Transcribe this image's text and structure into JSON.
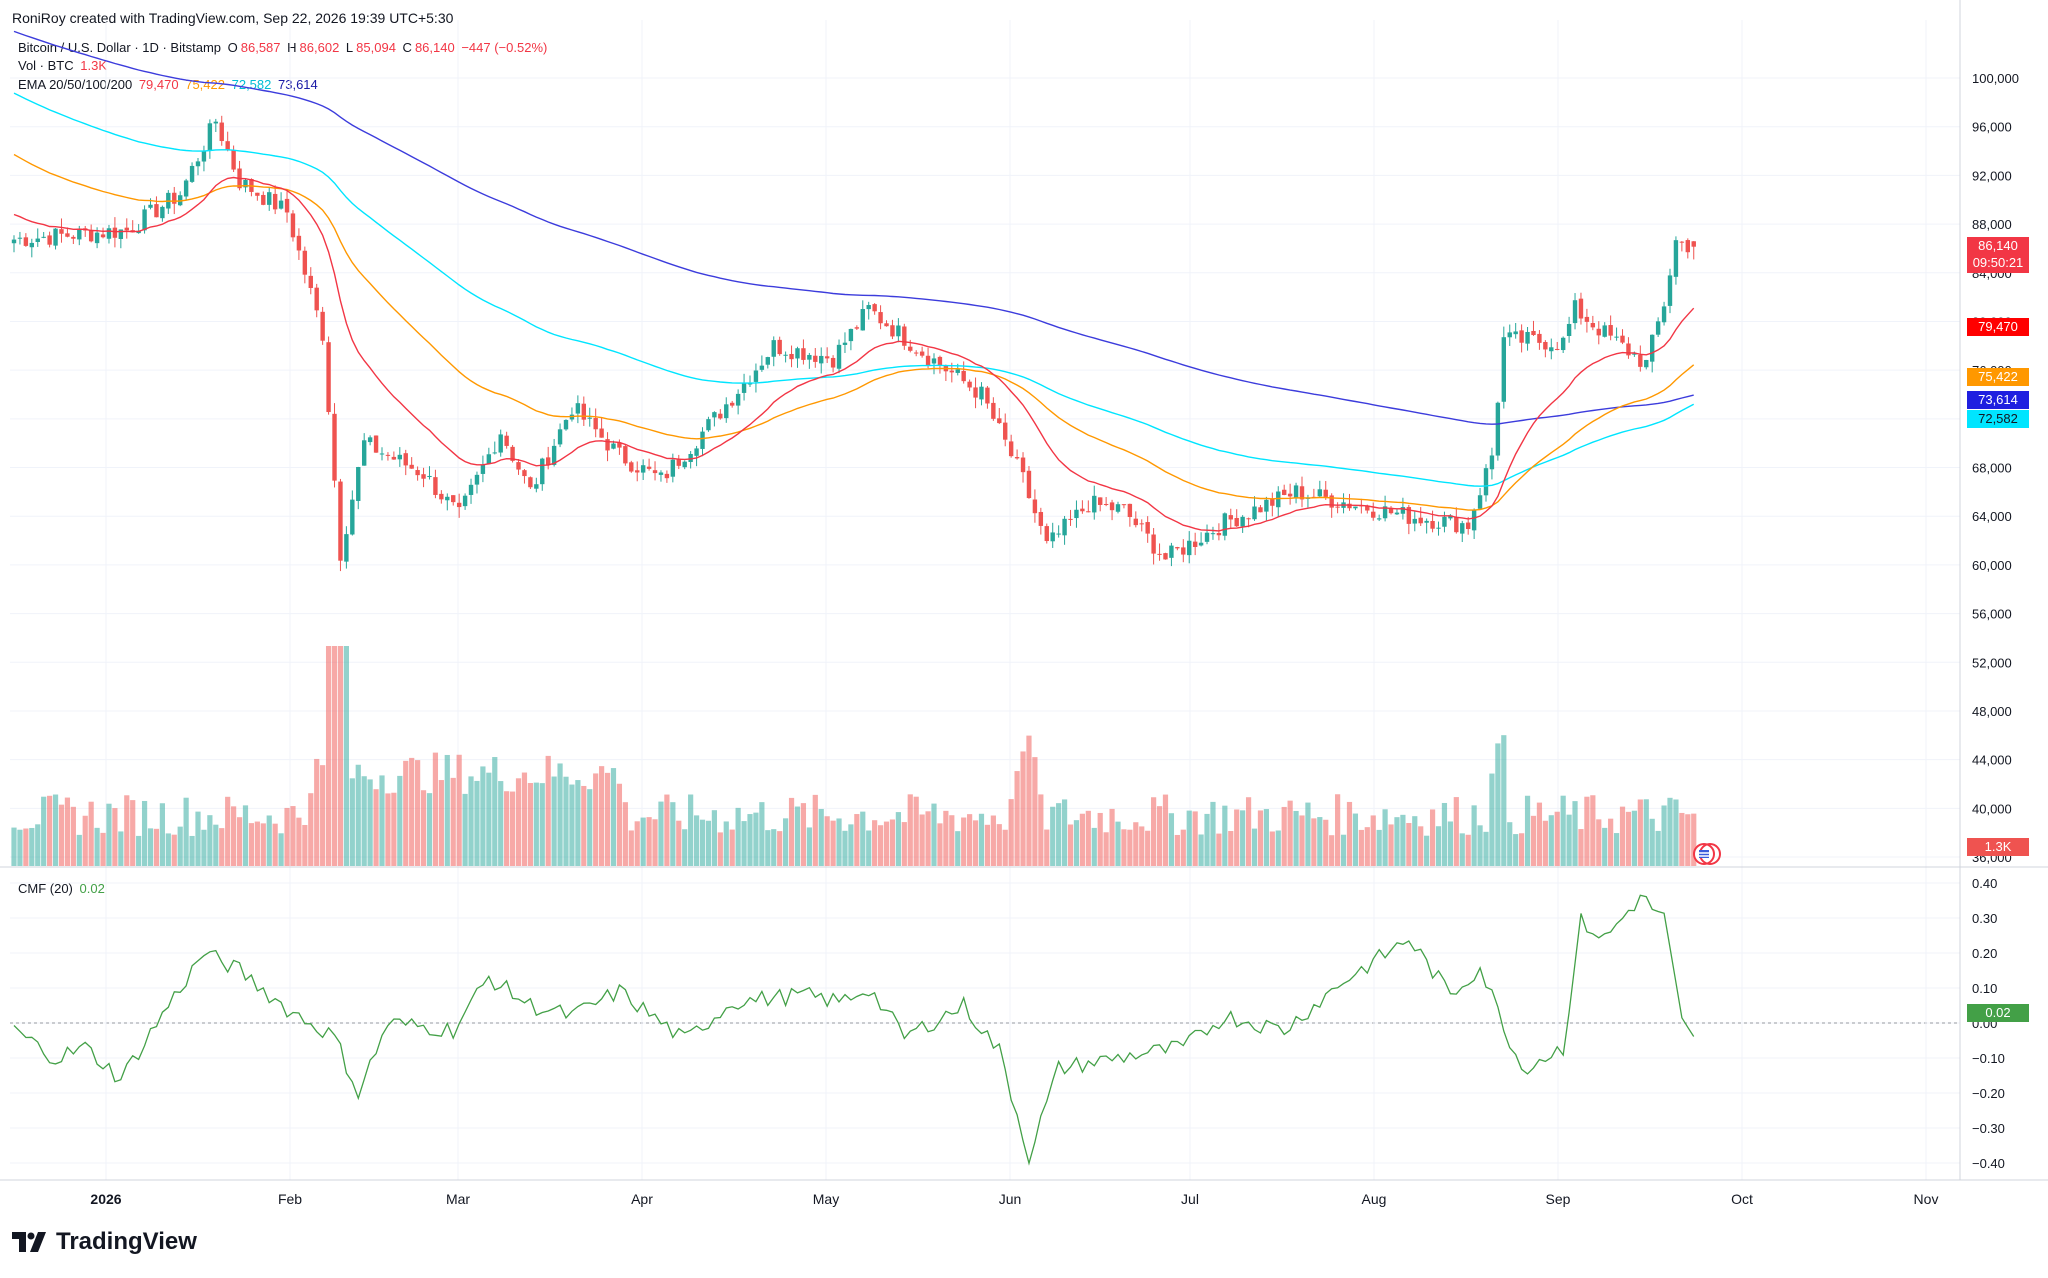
{
  "header": {
    "text": "RoniRoy created with TradingView.com, Sep 22, 2026 19:39 UTC+5:30"
  },
  "brand": {
    "name": "TradingView"
  },
  "legend": {
    "symbol": "Bitcoin / U.S. Dollar · 1D · Bitstamp",
    "o_label": "O",
    "o": "86,587",
    "h_label": "H",
    "h": "86,602",
    "l_label": "L",
    "l": "85,094",
    "c_label": "C",
    "c": "86,140",
    "change": "−447 (−0.52%)",
    "vol_label": "Vol · BTC",
    "vol": "1.3K",
    "ema_label": "EMA 20/50/100/200",
    "ema20": "79,470",
    "ema50": "75,422",
    "ema100": "72,582",
    "ema200": "73,614",
    "cmf_label": "CMF (20)",
    "cmf": "0.02"
  },
  "price_tags": {
    "last": "86,140",
    "countdown": "09:50:21",
    "ema20": "79,470",
    "ema50": "75,422",
    "ema200": "73,614",
    "ema100": "72,582",
    "volume": "1.3K",
    "cmf": "0.02"
  },
  "colors": {
    "up": "#26a69a",
    "down": "#ef5350",
    "ema20": "#f23645",
    "ema50": "#ff9800",
    "ema100": "#00e5ff",
    "ema200": "#3c3cdc",
    "cmf": "#43a047"
  },
  "chart_data": {
    "type": "candlestick",
    "price_axis": {
      "ticks": [
        "100,000",
        "96,000",
        "92,000",
        "88,000",
        "84,000",
        "80,000",
        "76,000",
        "72,000",
        "68,000",
        "64,000",
        "60,000",
        "56,000",
        "52,000",
        "48,000",
        "44,000",
        "40,000",
        "36,000"
      ]
    },
    "cmf_axis": {
      "ticks": [
        "0.40",
        "0.30",
        "0.20",
        "0.10",
        "0.00",
        "−0.10",
        "−0.20",
        "−0.30",
        "−0.40"
      ]
    },
    "x_axis": {
      "ticks": [
        "2026",
        "Feb",
        "Mar",
        "Apr",
        "May",
        "Jun",
        "Jul",
        "Aug",
        "Sep",
        "Oct",
        "Nov"
      ]
    },
    "anchors": [
      {
        "date": "2026-01-01",
        "close": 87500
      },
      {
        "date": "2026-01-10",
        "close": 90500
      },
      {
        "date": "2026-01-16",
        "close": 96500
      },
      {
        "date": "2026-01-20",
        "close": 91500
      },
      {
        "date": "2026-01-28",
        "close": 89000
      },
      {
        "date": "2026-02-03",
        "close": 79000
      },
      {
        "date": "2026-02-06",
        "close": 61000
      },
      {
        "date": "2026-02-10",
        "close": 70000
      },
      {
        "date": "2026-02-20",
        "close": 67500
      },
      {
        "date": "2026-02-26",
        "close": 64000
      },
      {
        "date": "2026-03-05",
        "close": 71000
      },
      {
        "date": "2026-03-10",
        "close": 66000
      },
      {
        "date": "2026-03-17",
        "close": 73000
      },
      {
        "date": "2026-03-25",
        "close": 69000
      },
      {
        "date": "2026-04-01",
        "close": 67000
      },
      {
        "date": "2026-04-10",
        "close": 72000
      },
      {
        "date": "2026-04-20",
        "close": 78000
      },
      {
        "date": "2026-04-30",
        "close": 77000
      },
      {
        "date": "2026-05-06",
        "close": 81000
      },
      {
        "date": "2026-05-15",
        "close": 77500
      },
      {
        "date": "2026-05-25",
        "close": 74000
      },
      {
        "date": "2026-06-01",
        "close": 67000
      },
      {
        "date": "2026-06-05",
        "close": 61500
      },
      {
        "date": "2026-06-12",
        "close": 65000
      },
      {
        "date": "2026-06-18",
        "close": 64500
      },
      {
        "date": "2026-06-25",
        "close": 60500
      },
      {
        "date": "2026-07-05",
        "close": 63500
      },
      {
        "date": "2026-07-17",
        "close": 66000
      },
      {
        "date": "2026-08-05",
        "close": 64000
      },
      {
        "date": "2026-08-15",
        "close": 63300
      },
      {
        "date": "2026-08-19",
        "close": 69000
      },
      {
        "date": "2026-08-21",
        "close": 78500
      },
      {
        "date": "2026-08-31",
        "close": 78300
      },
      {
        "date": "2026-09-02",
        "close": 81000
      },
      {
        "date": "2026-09-07",
        "close": 79000
      },
      {
        "date": "2026-09-14",
        "close": 76500
      },
      {
        "date": "2026-09-17",
        "close": 81500
      },
      {
        "date": "2026-09-19",
        "close": 86587
      },
      {
        "date": "2026-09-22",
        "close": 86140
      }
    ]
  }
}
